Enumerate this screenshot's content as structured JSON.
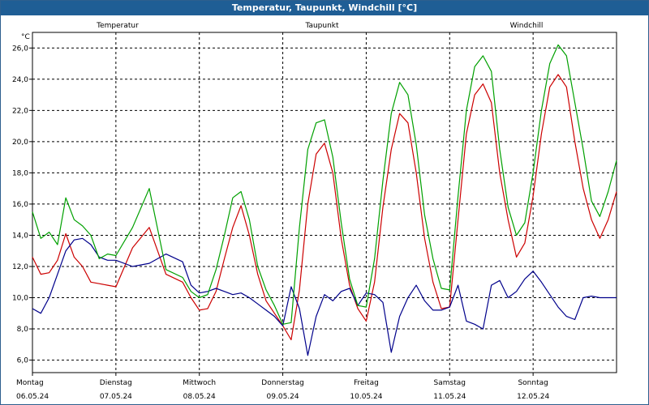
{
  "chart_data": {
    "type": "line",
    "title": "Temperatur, Taupunkt, Windchill [°C]",
    "y_unit": "°C",
    "ylim": [
      5.2,
      27.0
    ],
    "yticks": [
      6.0,
      8.0,
      10.0,
      12.0,
      14.0,
      16.0,
      18.0,
      20.0,
      22.0,
      24.0,
      26.0
    ],
    "ytick_labels": [
      "6,0",
      "8,0",
      "10,0",
      "12,0",
      "14,0",
      "16,0",
      "18,0",
      "20,0",
      "22,0",
      "24,0",
      "26,0"
    ],
    "xlim": [
      0,
      7
    ],
    "x_ticks": [
      {
        "day": "Montag",
        "date": "06.05.24"
      },
      {
        "day": "Dienstag",
        "date": "07.05.24"
      },
      {
        "day": "Mittwoch",
        "date": "08.05.24"
      },
      {
        "day": "Donnerstag",
        "date": "09.05.24"
      },
      {
        "day": "Freitag",
        "date": "10.05.24"
      },
      {
        "day": "Samstag",
        "date": "11.05.24"
      },
      {
        "day": "Sonntag",
        "date": "12.05.24"
      }
    ],
    "grid": true,
    "x_unit_note": "x values are days from Montag 06.05.24 00:00",
    "series": [
      {
        "name": "Temperatur",
        "color": "#cc0000",
        "x": [
          0,
          0.1,
          0.2,
          0.3,
          0.4,
          0.5,
          0.6,
          0.7,
          0.8,
          0.9,
          1.0,
          1.2,
          1.4,
          1.6,
          1.8,
          1.9,
          2.0,
          2.1,
          2.2,
          2.3,
          2.4,
          2.5,
          2.6,
          2.7,
          2.8,
          2.9,
          3.0,
          3.1,
          3.2,
          3.3,
          3.4,
          3.5,
          3.6,
          3.7,
          3.8,
          3.9,
          4.0,
          4.1,
          4.2,
          4.3,
          4.4,
          4.5,
          4.6,
          4.7,
          4.8,
          4.9,
          5.0,
          5.1,
          5.2,
          5.3,
          5.4,
          5.5,
          5.6,
          5.7,
          5.8,
          5.9,
          6.0,
          6.1,
          6.2,
          6.3,
          6.4,
          6.5,
          6.6,
          6.7,
          6.8,
          6.9,
          7.0
        ],
        "y": [
          12.6,
          11.5,
          11.6,
          12.4,
          14.1,
          12.6,
          12.0,
          11.0,
          10.9,
          10.8,
          10.7,
          13.2,
          14.5,
          11.5,
          11.0,
          10.0,
          9.2,
          9.3,
          10.4,
          12.5,
          14.5,
          15.9,
          14.0,
          11.5,
          9.8,
          9.0,
          8.2,
          7.3,
          10.5,
          16.0,
          19.2,
          19.9,
          18.0,
          13.8,
          10.8,
          9.3,
          8.5,
          11.0,
          15.8,
          19.5,
          21.8,
          21.2,
          18.0,
          13.8,
          11.0,
          9.3,
          9.4,
          15.0,
          20.5,
          23.0,
          23.7,
          22.5,
          18.0,
          15.0,
          12.6,
          13.5,
          16.5,
          20.5,
          23.5,
          24.3,
          23.5,
          20.0,
          17.0,
          15.0,
          13.8,
          15.0,
          16.8
        ]
      },
      {
        "name": "Taupunkt",
        "color": "#00008b",
        "x": [
          0,
          0.1,
          0.2,
          0.3,
          0.4,
          0.5,
          0.6,
          0.7,
          0.8,
          0.9,
          1.0,
          1.2,
          1.4,
          1.6,
          1.8,
          1.9,
          2.0,
          2.1,
          2.2,
          2.3,
          2.4,
          2.5,
          2.6,
          2.7,
          2.8,
          2.9,
          3.0,
          3.1,
          3.2,
          3.3,
          3.4,
          3.5,
          3.6,
          3.7,
          3.8,
          3.9,
          4.0,
          4.1,
          4.2,
          4.3,
          4.4,
          4.5,
          4.6,
          4.7,
          4.8,
          4.9,
          5.0,
          5.1,
          5.2,
          5.3,
          5.4,
          5.5,
          5.6,
          5.7,
          5.8,
          5.9,
          6.0,
          6.1,
          6.2,
          6.3,
          6.4,
          6.5,
          6.6,
          6.7,
          6.8,
          6.9,
          7.0
        ],
        "y": [
          9.3,
          9.0,
          10.0,
          11.5,
          13.0,
          13.7,
          13.8,
          13.4,
          12.6,
          12.4,
          12.4,
          12.0,
          12.2,
          12.8,
          12.3,
          10.8,
          10.3,
          10.4,
          10.6,
          10.4,
          10.2,
          10.3,
          10.0,
          9.6,
          9.2,
          8.8,
          8.2,
          10.7,
          9.3,
          6.3,
          8.8,
          10.2,
          9.8,
          10.4,
          10.6,
          9.5,
          10.3,
          10.2,
          9.7,
          6.5,
          8.8,
          10.0,
          10.8,
          9.8,
          9.2,
          9.2,
          9.4,
          10.8,
          8.5,
          8.3,
          8.0,
          10.8,
          11.1,
          10.0,
          10.4,
          11.2,
          11.7,
          11.0,
          10.2,
          9.4,
          8.8,
          8.6,
          10.0,
          10.1,
          10.0,
          10.0,
          10.0
        ]
      },
      {
        "name": "Windchill",
        "color": "#00a000",
        "x": [
          0,
          0.1,
          0.2,
          0.3,
          0.4,
          0.5,
          0.6,
          0.7,
          0.8,
          0.9,
          1.0,
          1.2,
          1.4,
          1.6,
          1.8,
          1.9,
          2.0,
          2.1,
          2.2,
          2.3,
          2.4,
          2.5,
          2.6,
          2.7,
          2.8,
          2.9,
          3.0,
          3.1,
          3.2,
          3.3,
          3.4,
          3.5,
          3.6,
          3.7,
          3.8,
          3.9,
          4.0,
          4.1,
          4.2,
          4.3,
          4.4,
          4.5,
          4.6,
          4.7,
          4.8,
          4.9,
          5.0,
          5.1,
          5.2,
          5.3,
          5.4,
          5.5,
          5.6,
          5.7,
          5.8,
          5.9,
          6.0,
          6.1,
          6.2,
          6.3,
          6.4,
          6.5,
          6.6,
          6.7,
          6.8,
          6.9,
          7.0
        ],
        "y": [
          15.5,
          13.8,
          14.2,
          13.4,
          16.4,
          15.0,
          14.6,
          14.0,
          12.5,
          12.8,
          12.7,
          14.5,
          17.0,
          11.8,
          11.3,
          10.4,
          10.0,
          10.2,
          11.8,
          14.0,
          16.4,
          16.8,
          15.0,
          12.0,
          10.5,
          9.5,
          8.3,
          8.4,
          14.5,
          19.5,
          21.2,
          21.4,
          19.0,
          14.8,
          11.2,
          9.5,
          9.4,
          12.5,
          17.5,
          21.8,
          23.8,
          23.0,
          19.8,
          15.3,
          12.5,
          10.6,
          10.5,
          16.5,
          22.0,
          24.8,
          25.5,
          24.5,
          19.5,
          15.8,
          14.0,
          14.8,
          18.0,
          22.0,
          25.0,
          26.2,
          25.5,
          22.5,
          19.5,
          16.2,
          15.2,
          16.8,
          18.8
        ]
      }
    ]
  }
}
